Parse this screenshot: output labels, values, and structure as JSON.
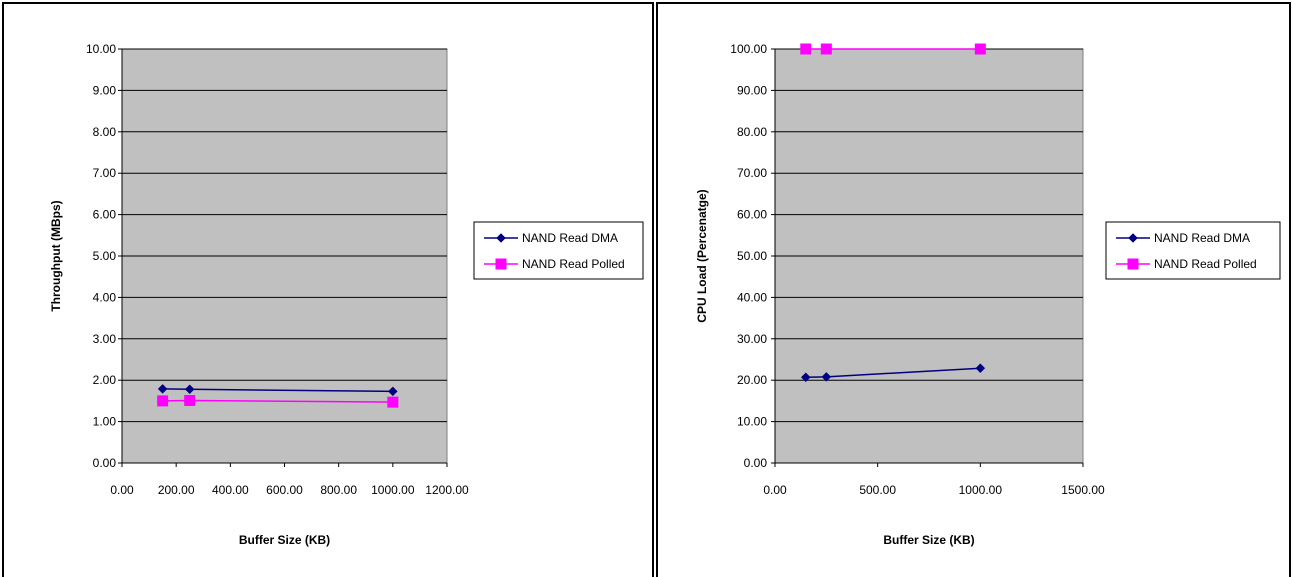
{
  "chart_data": [
    {
      "type": "line",
      "title": "",
      "xlabel": "Buffer Size (KB)",
      "ylabel": "Throughput (MBps)",
      "xlim": [
        0,
        1200
      ],
      "ylim": [
        0,
        10
      ],
      "xticks": [
        0,
        200,
        400,
        600,
        800,
        1000,
        1200
      ],
      "xtick_labels": [
        "0.00",
        "200.00",
        "400.00",
        "600.00",
        "800.00",
        "1000.00",
        "1200.00"
      ],
      "yticks": [
        0,
        1,
        2,
        3,
        4,
        5,
        6,
        7,
        8,
        9,
        10
      ],
      "ytick_labels": [
        "0.00",
        "1.00",
        "2.00",
        "3.00",
        "4.00",
        "5.00",
        "6.00",
        "7.00",
        "8.00",
        "9.00",
        "10.00"
      ],
      "grid": true,
      "legend_position": "right",
      "series": [
        {
          "name": "NAND Read DMA",
          "color": "#000080",
          "marker": "diamond",
          "x": [
            150,
            250,
            1000
          ],
          "y": [
            1.79,
            1.78,
            1.73
          ]
        },
        {
          "name": "NAND Read Polled",
          "color": "#FF00FF",
          "marker": "square",
          "x": [
            150,
            250,
            1000
          ],
          "y": [
            1.5,
            1.51,
            1.47
          ]
        }
      ]
    },
    {
      "type": "line",
      "title": "",
      "xlabel": "Buffer Size (KB)",
      "ylabel": "CPU Load (Percenatge)",
      "xlim": [
        0,
        1500
      ],
      "ylim": [
        0,
        100
      ],
      "xticks": [
        0,
        500,
        1000,
        1500
      ],
      "xtick_labels": [
        "0.00",
        "500.00",
        "1000.00",
        "1500.00"
      ],
      "yticks": [
        0,
        10,
        20,
        30,
        40,
        50,
        60,
        70,
        80,
        90,
        100
      ],
      "ytick_labels": [
        "0.00",
        "10.00",
        "20.00",
        "30.00",
        "40.00",
        "50.00",
        "60.00",
        "70.00",
        "80.00",
        "90.00",
        "100.00"
      ],
      "grid": true,
      "legend_position": "right",
      "series": [
        {
          "name": "NAND Read DMA",
          "color": "#000080",
          "marker": "diamond",
          "x": [
            150,
            250,
            1000
          ],
          "y": [
            20.7,
            20.8,
            22.9
          ]
        },
        {
          "name": "NAND Read Polled",
          "color": "#FF00FF",
          "marker": "square",
          "x": [
            150,
            250,
            1000
          ],
          "y": [
            100,
            100,
            100
          ]
        }
      ]
    }
  ]
}
